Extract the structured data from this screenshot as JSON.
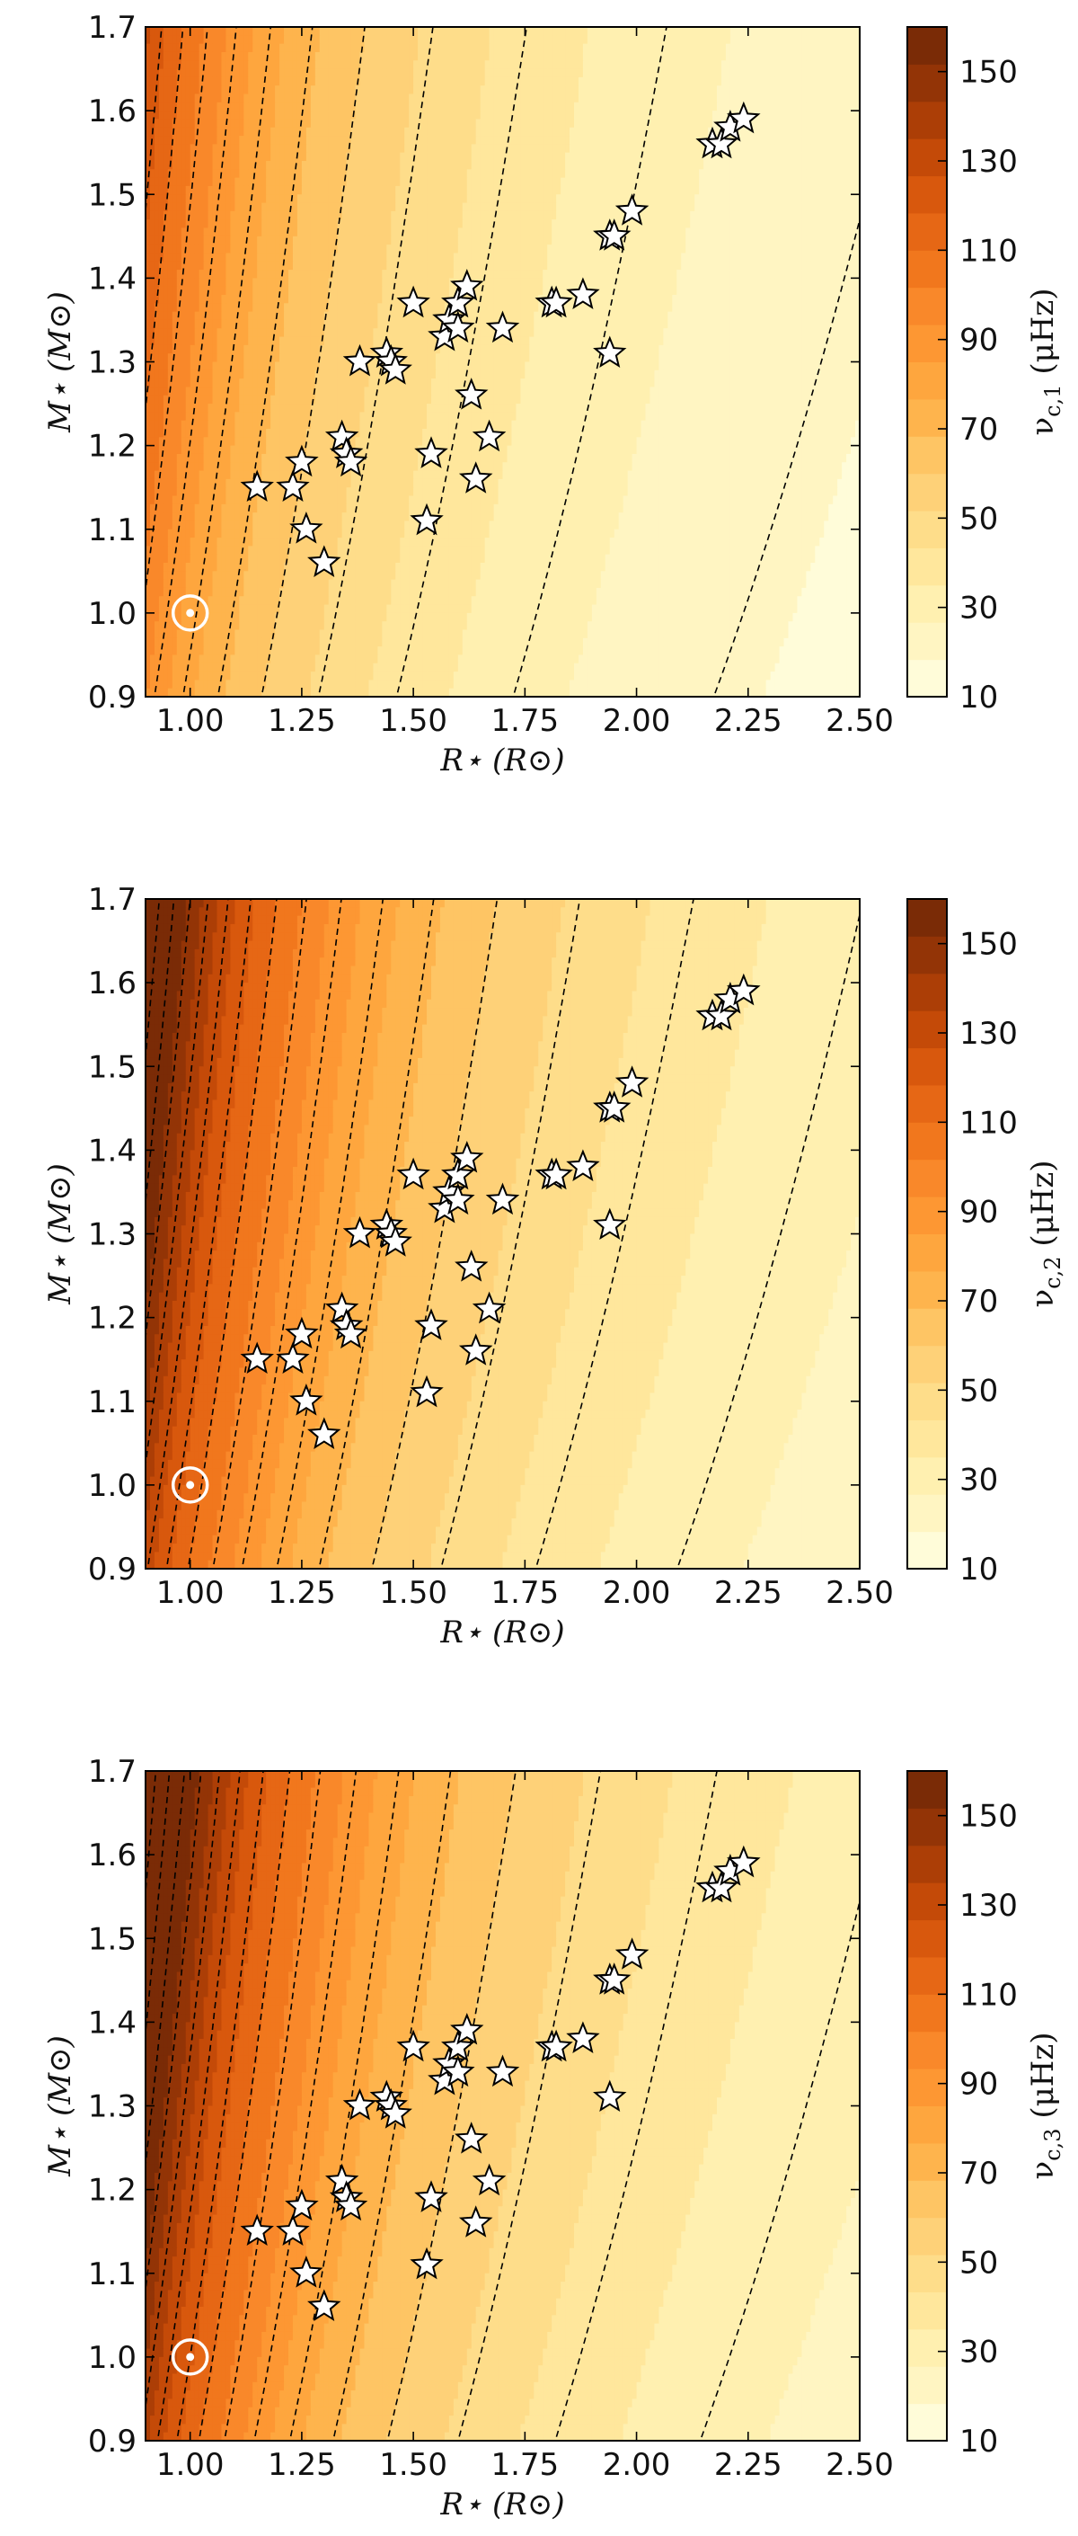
{
  "chart_data": [
    {
      "type": "contour",
      "xlabel": "R⋆ (R⊙)",
      "ylabel": "M⋆ (M⊙)",
      "colorbar_label": "νc,1 (μHz)",
      "xlim": [
        0.9,
        2.5
      ],
      "ylim": [
        0.9,
        1.7
      ],
      "clim": [
        10,
        160
      ],
      "x_ticks": [
        "1.00",
        "1.25",
        "1.50",
        "1.75",
        "2.00",
        "2.25",
        "2.50"
      ],
      "y_ticks": [
        "0.9",
        "1.0",
        "1.1",
        "1.2",
        "1.3",
        "1.4",
        "1.5",
        "1.6",
        "1.7"
      ],
      "colorbar_ticks": [
        "10",
        "30",
        "50",
        "70",
        "90",
        "110",
        "130",
        "150"
      ],
      "field_exponent": 1.75,
      "sun_value": 82
    },
    {
      "type": "contour",
      "xlabel": "R⋆ (R⊙)",
      "ylabel": "M⋆ (M⊙)",
      "colorbar_label": "νc,2 (μHz)",
      "xlim": [
        0.9,
        2.5
      ],
      "ylim": [
        0.9,
        1.7
      ],
      "clim": [
        10,
        160
      ],
      "x_ticks": [
        "1.00",
        "1.25",
        "1.50",
        "1.75",
        "2.00",
        "2.25",
        "2.50"
      ],
      "y_ticks": [
        "0.9",
        "1.0",
        "1.1",
        "1.2",
        "1.3",
        "1.4",
        "1.5",
        "1.6",
        "1.7"
      ],
      "colorbar_ticks": [
        "10",
        "30",
        "50",
        "70",
        "90",
        "110",
        "130",
        "150"
      ],
      "field_exponent": 1.75,
      "sun_value": 115
    },
    {
      "type": "contour",
      "xlabel": "R⋆ (R⊙)",
      "ylabel": "M⋆ (M⊙)",
      "colorbar_label": "νc,3 (μHz)",
      "xlim": [
        0.9,
        2.5
      ],
      "ylim": [
        0.9,
        1.7
      ],
      "clim": [
        10,
        160
      ],
      "x_ticks": [
        "1.00",
        "1.25",
        "1.50",
        "1.75",
        "2.00",
        "2.25",
        "2.50"
      ],
      "y_ticks": [
        "0.9",
        "1.0",
        "1.1",
        "1.2",
        "1.3",
        "1.4",
        "1.5",
        "1.6",
        "1.7"
      ],
      "colorbar_ticks": [
        "10",
        "30",
        "50",
        "70",
        "90",
        "110",
        "130",
        "150"
      ],
      "field_exponent": 1.75,
      "sun_value": 120
    }
  ],
  "stars": [
    [
      1.15,
      1.15
    ],
    [
      1.23,
      1.15
    ],
    [
      1.25,
      1.18
    ],
    [
      1.26,
      1.1
    ],
    [
      1.3,
      1.06
    ],
    [
      1.34,
      1.21
    ],
    [
      1.35,
      1.19
    ],
    [
      1.36,
      1.18
    ],
    [
      1.38,
      1.3
    ],
    [
      1.44,
      1.31
    ],
    [
      1.45,
      1.3
    ],
    [
      1.46,
      1.29
    ],
    [
      1.5,
      1.37
    ],
    [
      1.53,
      1.11
    ],
    [
      1.54,
      1.19
    ],
    [
      1.57,
      1.33
    ],
    [
      1.58,
      1.35
    ],
    [
      1.6,
      1.34
    ],
    [
      1.6,
      1.37
    ],
    [
      1.62,
      1.39
    ],
    [
      1.63,
      1.26
    ],
    [
      1.64,
      1.16
    ],
    [
      1.67,
      1.21
    ],
    [
      1.7,
      1.34
    ],
    [
      1.81,
      1.37
    ],
    [
      1.82,
      1.37
    ],
    [
      1.88,
      1.38
    ],
    [
      1.94,
      1.31
    ],
    [
      1.94,
      1.45
    ],
    [
      1.95,
      1.45
    ],
    [
      1.99,
      1.48
    ],
    [
      2.17,
      1.56
    ],
    [
      2.19,
      1.56
    ],
    [
      2.21,
      1.58
    ],
    [
      2.24,
      1.59
    ]
  ],
  "sun": [
    1.0,
    1.0
  ],
  "colormap": [
    "#fffcd9",
    "#fff5c2",
    "#fff0b0",
    "#ffe79c",
    "#fedd8a",
    "#fed178",
    "#fec564",
    "#feb44d",
    "#fea63e",
    "#fd9733",
    "#f9882a",
    "#f1771d",
    "#e66715",
    "#d8580d",
    "#c44a08",
    "#ac3e06",
    "#933406",
    "#7a2b06"
  ]
}
